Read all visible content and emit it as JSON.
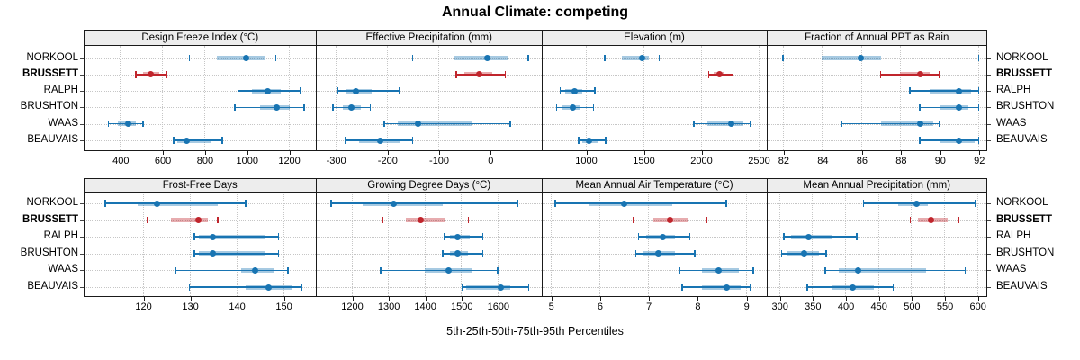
{
  "chart_data": {
    "type": "dotplot",
    "suptitle": "Annual Climate: competing",
    "xlabel": "5th-25th-50th-75th-95th Percentiles",
    "percentiles": [
      5,
      25,
      50,
      75,
      95
    ],
    "stations": [
      "NORKOOL",
      "BRUSSETT",
      "RALPH",
      "BRUSHTON",
      "WAAS",
      "BEAUVAIS"
    ],
    "highlight_station": "BRUSSETT",
    "legend_position": "none",
    "grid": "dotted",
    "colors": {
      "normal": "#1874b2",
      "highlight": "#c0252c",
      "grid": "#c6c6c6",
      "strip_bg": "#ededed",
      "border": "#1a1a1a",
      "text": "#000000"
    },
    "panels": [
      {
        "title": "Design Freeze Index (°C)",
        "xlim": [
          230,
          1330
        ],
        "ticks": [
          400,
          600,
          800,
          1000,
          1200
        ],
        "values": [
          [
            730,
            860,
            1000,
            1090,
            1140
          ],
          [
            475,
            510,
            545,
            585,
            620
          ],
          [
            960,
            1025,
            1100,
            1165,
            1255
          ],
          [
            945,
            1065,
            1145,
            1205,
            1275
          ],
          [
            345,
            390,
            440,
            475,
            510
          ],
          [
            655,
            670,
            715,
            835,
            885
          ]
        ]
      },
      {
        "title": "Effective Precipitation (mm)",
        "xlim": [
          -336,
          100
        ],
        "ticks": [
          -300,
          -200,
          -100,
          0
        ],
        "values": [
          [
            -150,
            -70,
            -5,
            35,
            75
          ],
          [
            -65,
            -50,
            -20,
            5,
            30
          ],
          [
            -295,
            -280,
            -260,
            -230,
            -175
          ],
          [
            -305,
            -285,
            -268,
            -250,
            -232
          ],
          [
            -205,
            -178,
            -140,
            -35,
            40
          ],
          [
            -280,
            -254,
            -213,
            -176,
            -150
          ]
        ]
      },
      {
        "title": "Elevation (m)",
        "xlim": [
          625,
          2570
        ],
        "ticks": [
          1000,
          1500,
          2000,
          2500
        ],
        "values": [
          [
            1170,
            1320,
            1490,
            1550,
            1640
          ],
          [
            2070,
            2110,
            2160,
            2200,
            2280
          ],
          [
            780,
            825,
            905,
            970,
            1080
          ],
          [
            750,
            800,
            890,
            955,
            1070
          ],
          [
            1940,
            2060,
            2265,
            2370,
            2435
          ],
          [
            940,
            975,
            1035,
            1110,
            1175
          ]
        ]
      },
      {
        "title": "Fraction of Annual PPT as Rain",
        "xlim": [
          81.2,
          92.4
        ],
        "ticks": [
          82,
          84,
          86,
          88,
          90,
          92
        ],
        "values": [
          [
            82,
            84,
            86,
            87,
            92
          ],
          [
            87,
            88,
            89,
            89.5,
            90
          ],
          [
            88.5,
            89.5,
            91,
            91.6,
            92
          ],
          [
            89,
            90,
            91,
            91.5,
            92
          ],
          [
            85,
            87,
            89,
            89.7,
            90
          ],
          [
            89,
            90,
            91,
            91.8,
            92
          ]
        ]
      },
      {
        "title": "Frost-Free Days",
        "xlim": [
          107.5,
          157
        ],
        "ticks": [
          120,
          130,
          140,
          150
        ],
        "values": [
          [
            112,
            119,
            123,
            136,
            142
          ],
          [
            121,
            126,
            132,
            134,
            136
          ],
          [
            131,
            132,
            135,
            146,
            149
          ],
          [
            131,
            132,
            135,
            146,
            149
          ],
          [
            127,
            141,
            144,
            148,
            151
          ],
          [
            130,
            142,
            147,
            152,
            154
          ]
        ]
      },
      {
        "title": "Growing Degree Days (°C)",
        "xlim": [
          1105,
          1720
        ],
        "ticks": [
          1200,
          1300,
          1400,
          1500,
          1600
        ],
        "values": [
          [
            1145,
            1230,
            1315,
            1450,
            1655
          ],
          [
            1285,
            1350,
            1390,
            1455,
            1520
          ],
          [
            1455,
            1470,
            1490,
            1525,
            1560
          ],
          [
            1450,
            1470,
            1490,
            1520,
            1560
          ],
          [
            1280,
            1400,
            1465,
            1530,
            1600
          ],
          [
            1505,
            1515,
            1610,
            1635,
            1685
          ]
        ]
      },
      {
        "title": "Mean Annual Air Temperature (°C)",
        "xlim": [
          4.83,
          9.42
        ],
        "ticks": [
          5,
          6,
          7,
          8,
          9
        ],
        "values": [
          [
            5.1,
            5.8,
            6.5,
            7.5,
            8.6
          ],
          [
            6.7,
            7.1,
            7.45,
            7.8,
            8.2
          ],
          [
            6.8,
            6.95,
            7.3,
            7.55,
            7.85
          ],
          [
            6.75,
            6.9,
            7.2,
            7.55,
            7.95
          ],
          [
            7.65,
            8.1,
            8.45,
            8.85,
            9.15
          ],
          [
            7.7,
            8.1,
            8.6,
            8.9,
            9.1
          ]
        ]
      },
      {
        "title": "Mean Annual Precipitation (mm)",
        "xlim": [
          282,
          614
        ],
        "ticks": [
          300,
          350,
          400,
          450,
          500,
          550,
          600
        ],
        "values": [
          [
            428,
            480,
            508,
            525,
            598
          ],
          [
            499,
            510,
            530,
            555,
            572
          ],
          [
            307,
            318,
            345,
            381,
            418
          ],
          [
            304,
            313,
            338,
            360,
            371
          ],
          [
            370,
            390,
            420,
            522,
            582
          ],
          [
            343,
            380,
            412,
            444,
            473
          ]
        ]
      }
    ]
  }
}
